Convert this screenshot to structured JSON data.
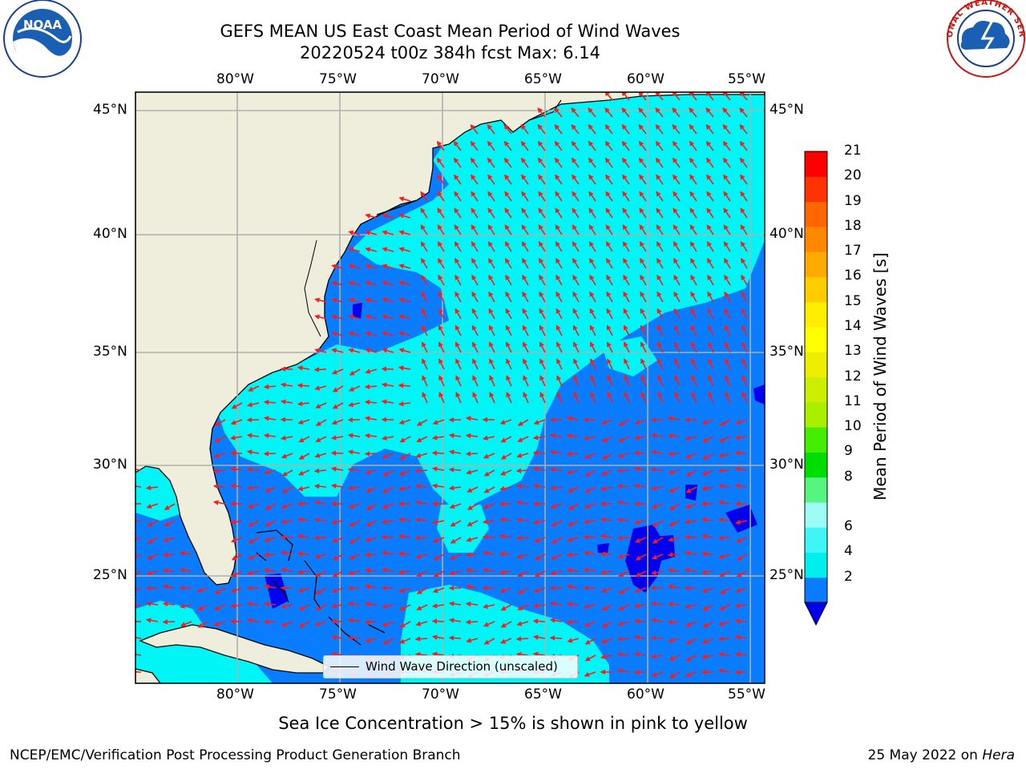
{
  "title": {
    "line1": "GEFS MEAN US East Coast Mean Period of Wind Waves",
    "line2": "20220524 t00z 384h fcst   Max: 6.14"
  },
  "map": {
    "lon_ticks": [
      "80°W",
      "75°W",
      "70°W",
      "65°W",
      "60°W",
      "55°W"
    ],
    "lat_ticks": [
      "45°N",
      "40°N",
      "35°N",
      "30°N",
      "25°N"
    ],
    "lon_range": [
      -85,
      -54.3
    ],
    "lat_range": [
      20.3,
      45.8
    ],
    "grid": true,
    "colors": {
      "land": "#efeedd",
      "ocean_low": "#0a7cff",
      "ocean_mid": "#00f6f6",
      "ocean_deep": "#0000ee",
      "arrow": "#ff1a1a",
      "grid": "#b0b0b0"
    }
  },
  "legend": {
    "label": "Wind Wave Direction (unscaled)"
  },
  "colorbar": {
    "label": "Mean Period of Wind Waves [s]",
    "ticks": [
      "21",
      "20",
      "19",
      "18",
      "17",
      "16",
      "15",
      "14",
      "13",
      "12",
      "11",
      "10",
      "9",
      "8",
      "6",
      "4",
      "2"
    ],
    "colors_bottom_to_top": [
      "#0a7cff",
      "#00eeee",
      "#3ff5f5",
      "#9efaf5",
      "#55f580",
      "#00dd00",
      "#44ee00",
      "#aaee00",
      "#ccee00",
      "#eeee00",
      "#ffff00",
      "#ffee00",
      "#ffcc00",
      "#ffaa00",
      "#ff8800",
      "#ff6600",
      "#ff3300",
      "#ff0000"
    ],
    "under_color": "#0000ee"
  },
  "footer": {
    "note": "Sea Ice Concentration > 15% is shown in pink to yellow",
    "left": "NCEP/EMC/Verification Post Processing Product Generation Branch",
    "right_prefix": "25 May 2022 on ",
    "right_host": "Hera"
  },
  "logos": {
    "left": "NOAA",
    "right": "NATIONAL WEATHER SERVICE"
  }
}
